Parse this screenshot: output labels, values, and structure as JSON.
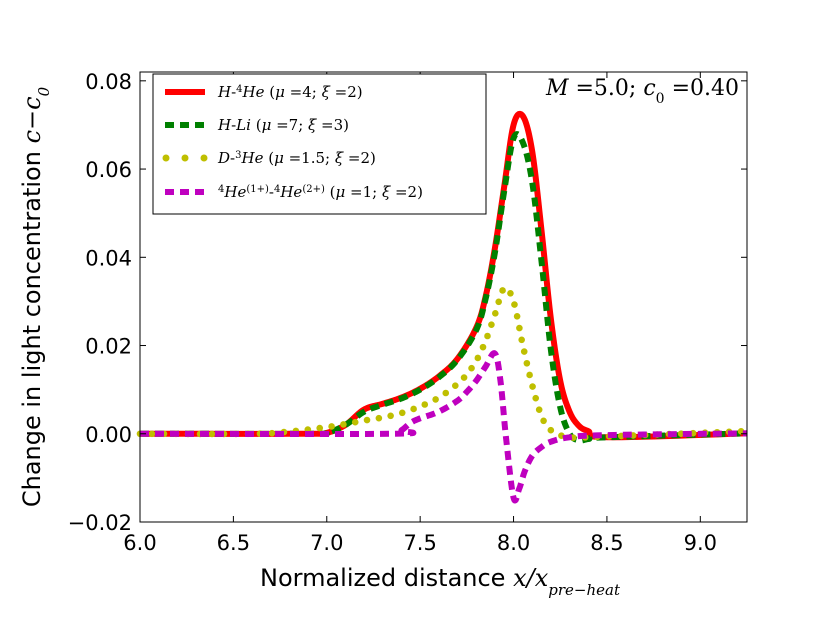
{
  "chart_data": {
    "type": "line",
    "title": "",
    "xlabel": "Normalized distance",
    "xlabel_math": "x/x",
    "xlabel_sub": "pre−heat",
    "ylabel": "Change in light concentration",
    "ylabel_math": "c−c",
    "ylabel_sub": "0",
    "xlim": [
      6.0,
      9.25
    ],
    "ylim": [
      -0.02,
      0.082
    ],
    "xticks": [
      "6.0",
      "6.5",
      "7.0",
      "7.5",
      "8.0",
      "8.5",
      "9.0"
    ],
    "yticks": [
      "−0.02",
      "0.00",
      "0.02",
      "0.04",
      "0.06",
      "0.08"
    ],
    "annotation": "M=5.0; c₀ =0.40",
    "legend_position": "top-left",
    "series": [
      {
        "name": "H-⁴He (μ=4; ξ=2)",
        "color": "#ff0000",
        "style": "solid",
        "x": [
          6.0,
          6.9,
          7.0,
          7.1,
          7.2,
          7.3,
          7.4,
          7.5,
          7.6,
          7.7,
          7.8,
          7.85,
          7.9,
          7.95,
          8.0,
          8.05,
          8.1,
          8.15,
          8.2,
          8.25,
          8.3,
          8.35,
          8.4,
          8.5,
          9.25
        ],
        "y": [
          0.0,
          0.0,
          0.0002,
          0.002,
          0.0055,
          0.0068,
          0.0082,
          0.0102,
          0.013,
          0.017,
          0.024,
          0.031,
          0.042,
          0.056,
          0.07,
          0.072,
          0.064,
          0.046,
          0.026,
          0.012,
          0.005,
          0.0018,
          0.0006,
          -0.0008,
          0.0001
        ]
      },
      {
        "name": "H-Li (μ=7; ξ=3)",
        "color": "#008000",
        "style": "dashed",
        "x": [
          6.0,
          6.9,
          7.0,
          7.1,
          7.2,
          7.3,
          7.4,
          7.5,
          7.6,
          7.7,
          7.8,
          7.85,
          7.9,
          7.95,
          8.0,
          8.05,
          8.1,
          8.15,
          8.2,
          8.25,
          8.3,
          8.35,
          8.4,
          8.5,
          9.25
        ],
        "y": [
          0.0,
          0.0,
          0.0002,
          0.002,
          0.005,
          0.0066,
          0.008,
          0.01,
          0.0128,
          0.0168,
          0.0235,
          0.0305,
          0.041,
          0.055,
          0.067,
          0.066,
          0.057,
          0.039,
          0.019,
          0.006,
          0.0,
          -0.0015,
          -0.0012,
          -0.0008,
          0.0001
        ]
      },
      {
        "name": "D-³He (μ=1.5; ξ=2)",
        "color": "#bfbf00",
        "style": "dotted",
        "x": [
          6.0,
          6.6,
          6.8,
          7.0,
          7.1,
          7.2,
          7.3,
          7.4,
          7.5,
          7.6,
          7.7,
          7.75,
          7.8,
          7.85,
          7.9,
          7.95,
          8.0,
          8.05,
          8.1,
          8.15,
          8.2,
          8.3,
          8.5,
          9.25
        ],
        "y": [
          0.0,
          0.0,
          0.0005,
          0.0015,
          0.0022,
          0.003,
          0.0037,
          0.0047,
          0.0062,
          0.0082,
          0.0113,
          0.0135,
          0.0165,
          0.021,
          0.027,
          0.033,
          0.03,
          0.02,
          0.011,
          0.004,
          0.0008,
          -0.0008,
          -0.0006,
          0.0006
        ]
      },
      {
        "name": "⁴He⁽¹⁺⁾-⁴He⁽²⁺⁾ (μ=1; ξ=2)",
        "color": "#bf00bf",
        "style": "dashed",
        "x": [
          6.0,
          7.35,
          7.4,
          7.45,
          7.5,
          7.6,
          7.7,
          7.75,
          7.8,
          7.85,
          7.9,
          7.93,
          7.96,
          8.0,
          8.03,
          8.06,
          8.1,
          8.15,
          8.2,
          8.3,
          8.5,
          9.25
        ],
        "y": [
          0.0,
          0.0,
          0.0008,
          0.0025,
          0.0035,
          0.005,
          0.0075,
          0.0095,
          0.012,
          0.0152,
          0.0182,
          0.012,
          -0.001,
          -0.0145,
          -0.0125,
          -0.0085,
          -0.005,
          -0.003,
          -0.0018,
          -0.0008,
          -0.0003,
          0.0001
        ]
      }
    ]
  }
}
